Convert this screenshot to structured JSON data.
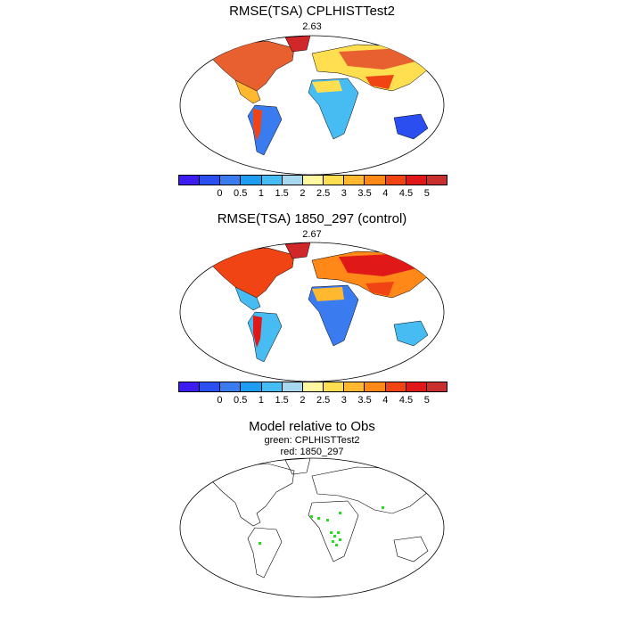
{
  "panels": [
    {
      "title": "RMSE(TSA) CPLHISTTest2",
      "subtitle": "2.63"
    },
    {
      "title": "RMSE(TSA) 1850_297 (control)",
      "subtitle": "2.67"
    },
    {
      "title": "Model relative to Obs",
      "legend_green": "green: CPLHISTTest2",
      "legend_red": "red: 1850_297"
    }
  ],
  "colorbar": {
    "colors": [
      "#3c1cf0",
      "#2b4ef0",
      "#3a7cf0",
      "#1e9cf2",
      "#46bcf2",
      "#a8d8ee",
      "#fff8a0",
      "#ffde50",
      "#ffb830",
      "#ff8818",
      "#f04414",
      "#e01818",
      "#c83030"
    ],
    "tick_labels": [
      "0",
      "0.5",
      "1",
      "1.5",
      "2",
      "2.5",
      "3",
      "3.5",
      "4",
      "4.5",
      "5"
    ]
  },
  "colors": {
    "land_outline": "#000000",
    "green_marker": "#22dd22"
  }
}
